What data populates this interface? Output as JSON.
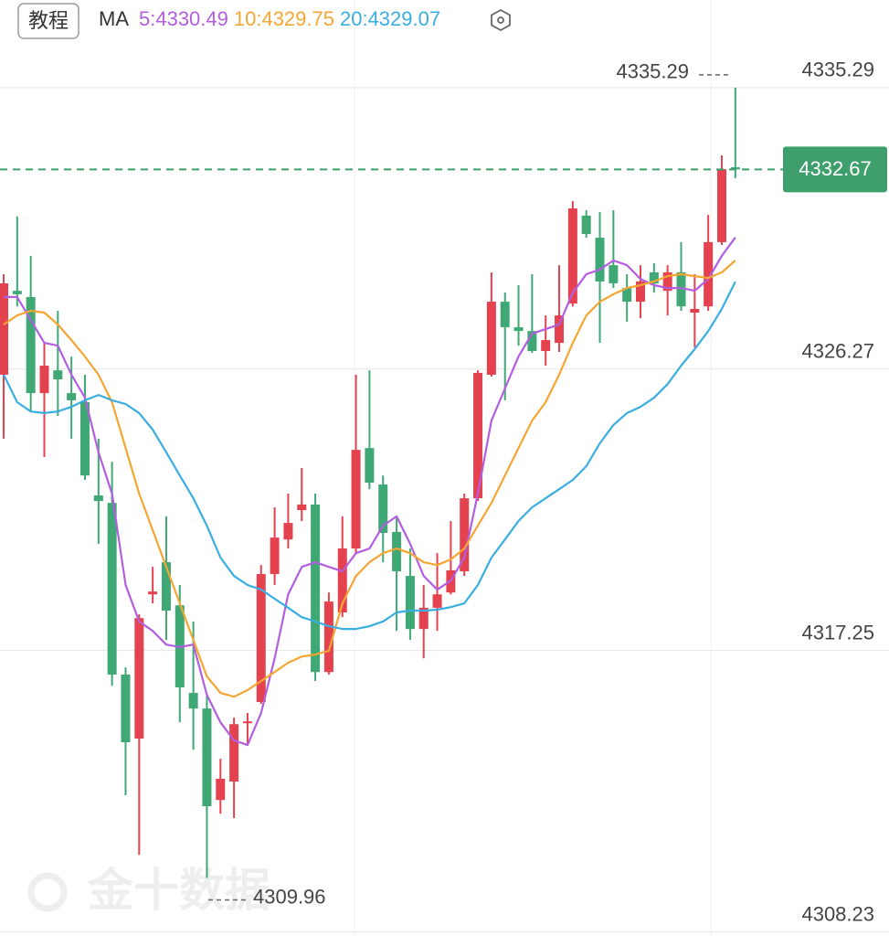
{
  "header": {
    "tutorial_button": "教程",
    "indicator": "MA"
  },
  "chart_data": {
    "type": "candlestick",
    "open": [
      4326.09,
      4328.78,
      4328.58,
      4325.5,
      4326.23,
      4325.5,
      4325.21,
      4322.22,
      4321.98,
      4316.48,
      4314.43,
      4319.05,
      4320.08,
      4318.7,
      4315.89,
      4315.39,
      4312.46,
      4313.05,
      4314.92,
      4315.6,
      4319.7,
      4320.81,
      4321.75,
      4321.93,
      4316.56,
      4318.47,
      4320.52,
      4323.74,
      4322.57,
      4321.05,
      4319.64,
      4317.94,
      4318.62,
      4319.11,
      4319.79,
      4322.13,
      4326.09,
      4328.43,
      4327.61,
      4327.49,
      4326.85,
      4327.11,
      4328.37,
      4331.19,
      4330.48,
      4329.6,
      4328.87,
      4328.43,
      4329.37,
      4328.78,
      4329.37,
      4328.08,
      4328.28,
      4330.34,
      4332.74
    ],
    "high": [
      4329.31,
      4331.16,
      4329.9,
      4327.11,
      4328.14,
      4326.67,
      4326.09,
      4324.04,
      4323.3,
      4316.71,
      4318.41,
      4319.93,
      4321.55,
      4319.35,
      4318.18,
      4315.83,
      4313.78,
      4315.1,
      4315.25,
      4319.99,
      4321.84,
      4322.28,
      4323.1,
      4322.28,
      4319.11,
      4321.55,
      4326.09,
      4326.23,
      4322.86,
      4321.55,
      4320.52,
      4319.35,
      4320.37,
      4321.4,
      4322.28,
      4326.23,
      4329.37,
      4328.72,
      4328.96,
      4329.31,
      4327.99,
      4329.6,
      4331.65,
      4331.36,
      4331.3,
      4331.36,
      4329.31,
      4329.6,
      4329.66,
      4329.6,
      4330.34,
      4329.31,
      4331.21,
      4333.12,
      4335.29
    ],
    "low": [
      4324.04,
      4328.28,
      4324.91,
      4323.45,
      4324.77,
      4324.04,
      4322.72,
      4320.67,
      4316.12,
      4312.61,
      4310.7,
      4318.76,
      4317.59,
      4314.95,
      4314.07,
      4309.96,
      4312.02,
      4311.88,
      4314.22,
      4315.54,
      4319.35,
      4320.52,
      4321.4,
      4316.27,
      4316.48,
      4318.32,
      4320.37,
      4322.42,
      4320.08,
      4317.88,
      4317.59,
      4317.0,
      4317.88,
      4319.05,
      4319.64,
      4322.04,
      4326.03,
      4325.27,
      4327.02,
      4326.79,
      4326.38,
      4326.82,
      4328.28,
      4330.48,
      4327.11,
      4328.87,
      4327.79,
      4327.9,
      4328.72,
      4327.99,
      4328.14,
      4326.97,
      4328.14,
      4330.25,
      4332.39
    ],
    "close": [
      4329.02,
      4328.67,
      4325.5,
      4326.38,
      4325.94,
      4325.27,
      4322.86,
      4322.04,
      4316.48,
      4314.31,
      4318.29,
      4319.14,
      4318.53,
      4316.07,
      4315.39,
      4312.26,
      4313.14,
      4314.89,
      4314.98,
      4319.7,
      4320.87,
      4321.34,
      4321.93,
      4316.56,
      4318.82,
      4320.52,
      4323.68,
      4322.63,
      4321.02,
      4319.79,
      4317.94,
      4318.62,
      4319.05,
      4319.82,
      4322.13,
      4326.15,
      4328.43,
      4327.61,
      4327.49,
      4326.85,
      4327.2,
      4327.99,
      4331.42,
      4330.6,
      4329.08,
      4329.02,
      4328.43,
      4329.08,
      4329.02,
      4329.37,
      4328.28,
      4328.2,
      4330.34,
      4332.68,
      4332.67
    ],
    "up_color": "#e5424f",
    "down_color": "#40a874",
    "series": [
      {
        "name": "5:4330.49",
        "color": "#b35ee0",
        "values": [
          4328.58,
          4328.58,
          4327.84,
          4327.11,
          4327.02,
          4326.09,
          4325.35,
          4323.6,
          4322.28,
          4319.35,
          4318.18,
          4317.88,
          4317.44,
          4317.36,
          4317.44,
          4315.83,
          4314.95,
          4314.37,
          4314.22,
          4315.25,
          4317.0,
          4319.05,
          4319.93,
          4320.08,
          4319.93,
          4319.79,
          4320.37,
          4320.52,
          4321.25,
          4321.55,
          4320.67,
          4319.64,
          4319.2,
          4319.49,
          4320.23,
          4322.28,
          4324.62,
          4325.65,
          4326.67,
          4327.41,
          4327.55,
          4327.7,
          4328.72,
          4329.31,
          4329.46,
          4329.75,
          4329.6,
          4329.16,
          4328.96,
          4328.87,
          4328.87,
          4328.78,
          4329.16,
          4329.9,
          4330.49
        ]
      },
      {
        "name": "10:4329.75",
        "color": "#f5a632",
        "values": [
          4327.7,
          4327.99,
          4328.14,
          4328.08,
          4327.7,
          4327.2,
          4326.67,
          4326.09,
          4325.21,
          4323.74,
          4322.28,
          4321.11,
          4319.93,
          4318.76,
          4317.59,
          4316.42,
          4315.89,
          4315.77,
          4315.98,
          4316.27,
          4316.56,
          4316.86,
          4317.06,
          4317.12,
          4317.24,
          4318.76,
          4319.64,
          4320.08,
          4320.37,
          4320.52,
          4320.37,
          4320.08,
          4319.99,
          4320.17,
          4320.52,
          4321.25,
          4321.98,
          4322.86,
          4323.74,
          4324.62,
          4325.21,
          4326.09,
          4327.11,
          4327.99,
          4328.43,
          4328.67,
          4328.87,
          4328.96,
          4329.08,
          4329.25,
          4329.31,
          4329.25,
          4329.19,
          4329.37,
          4329.75
        ]
      },
      {
        "name": "20:4329.07",
        "color": "#3aaee0",
        "values": [
          4326.09,
          4325.21,
          4324.91,
          4324.86,
          4324.91,
          4325.06,
          4325.27,
          4325.44,
          4325.27,
          4325.15,
          4324.86,
          4324.33,
          4323.6,
          4322.86,
          4322.13,
          4321.25,
          4320.23,
          4319.64,
          4319.35,
          4319.2,
          4318.91,
          4318.62,
          4318.32,
          4318.18,
          4318.03,
          4317.94,
          4317.94,
          4318.03,
          4318.18,
          4318.47,
          4318.53,
          4318.53,
          4318.56,
          4318.64,
          4318.76,
          4319.35,
          4320.23,
          4320.81,
          4321.4,
          4321.84,
          4322.13,
          4322.42,
          4322.72,
          4323.16,
          4323.89,
          4324.48,
          4324.86,
          4325.06,
          4325.35,
          4325.79,
          4326.38,
          4326.91,
          4327.49,
          4328.2,
          4329.07
        ]
      }
    ],
    "ylim": [
      4308.1,
      4338.1
    ],
    "yticks": [
      4335.29,
      4326.27,
      4317.25,
      4308.23
    ],
    "grid": true,
    "max_marker": 4335.29,
    "min_marker": 4309.96,
    "last_price": 4332.67,
    "last_price_color": "#3e9f6c",
    "watermark": "金十数据"
  }
}
